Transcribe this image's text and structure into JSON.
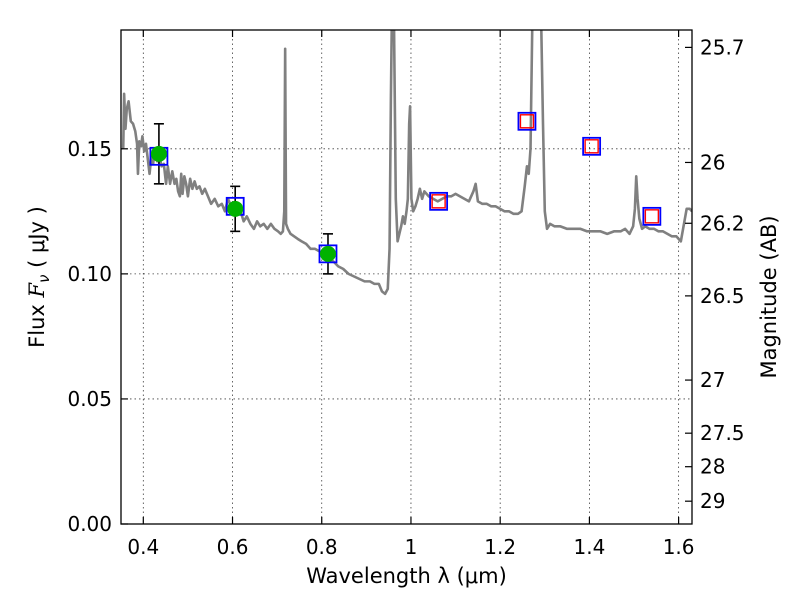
{
  "chart_data": {
    "type": "line",
    "xlabel": "Wavelength  λ (μm)",
    "ylabel": "Flux  F_ν  ( μJy )",
    "ylabel_right": "Magnitude (AB)",
    "xlim": [
      0.35,
      1.63
    ],
    "ylim": [
      0.0,
      0.1975
    ],
    "grid": true,
    "x_ticks": [
      {
        "value": 0.4,
        "label": "0.4"
      },
      {
        "value": 0.6,
        "label": "0.6"
      },
      {
        "value": 0.8,
        "label": "0.8"
      },
      {
        "value": 1.0,
        "label": "1"
      },
      {
        "value": 1.2,
        "label": "1.2"
      },
      {
        "value": 1.4,
        "label": "1.4"
      },
      {
        "value": 1.6,
        "label": "1.6"
      }
    ],
    "y_ticks": [
      {
        "value": 0.0,
        "label": "0.00"
      },
      {
        "value": 0.05,
        "label": "0.05"
      },
      {
        "value": 0.1,
        "label": "0.10"
      },
      {
        "value": 0.15,
        "label": "0.15"
      }
    ],
    "right_ticks": [
      {
        "mag": 25.7,
        "label": "25.7"
      },
      {
        "mag": 26,
        "label": "26"
      },
      {
        "mag": 26.2,
        "label": "26.2"
      },
      {
        "mag": 26.5,
        "label": "26.5"
      },
      {
        "mag": 27,
        "label": "27"
      },
      {
        "mag": 27.5,
        "label": "27.5"
      },
      {
        "mag": 28,
        "label": "28"
      },
      {
        "mag": 29,
        "label": "29"
      }
    ],
    "model_spectrum": {
      "color": "#808080",
      "points": [
        [
          0.355,
          0.15
        ],
        [
          0.357,
          0.172
        ],
        [
          0.36,
          0.158
        ],
        [
          0.363,
          0.166
        ],
        [
          0.367,
          0.169
        ],
        [
          0.372,
          0.161
        ],
        [
          0.377,
          0.16
        ],
        [
          0.382,
          0.157
        ],
        [
          0.386,
          0.152
        ],
        [
          0.388,
          0.14
        ],
        [
          0.391,
          0.153
        ],
        [
          0.395,
          0.151
        ],
        [
          0.398,
          0.155
        ],
        [
          0.402,
          0.149
        ],
        [
          0.406,
          0.152
        ],
        [
          0.41,
          0.146
        ],
        [
          0.414,
          0.14
        ],
        [
          0.418,
          0.147
        ],
        [
          0.422,
          0.144
        ],
        [
          0.426,
          0.15
        ],
        [
          0.431,
          0.145
        ],
        [
          0.436,
          0.147
        ],
        [
          0.441,
          0.143
        ],
        [
          0.446,
          0.144
        ],
        [
          0.451,
          0.136
        ],
        [
          0.455,
          0.143
        ],
        [
          0.46,
          0.136
        ],
        [
          0.465,
          0.141
        ],
        [
          0.47,
          0.136
        ],
        [
          0.474,
          0.138
        ],
        [
          0.478,
          0.133
        ],
        [
          0.482,
          0.131
        ],
        [
          0.485,
          0.14
        ],
        [
          0.488,
          0.132
        ],
        [
          0.492,
          0.139
        ],
        [
          0.496,
          0.136
        ],
        [
          0.5,
          0.131
        ],
        [
          0.505,
          0.138
        ],
        [
          0.51,
          0.134
        ],
        [
          0.515,
          0.137
        ],
        [
          0.52,
          0.134
        ],
        [
          0.526,
          0.135
        ],
        [
          0.532,
          0.132
        ],
        [
          0.538,
          0.134
        ],
        [
          0.545,
          0.131
        ],
        [
          0.552,
          0.128
        ],
        [
          0.56,
          0.13
        ],
        [
          0.568,
          0.127
        ],
        [
          0.576,
          0.128
        ],
        [
          0.583,
          0.125
        ],
        [
          0.59,
          0.13
        ],
        [
          0.597,
          0.127
        ],
        [
          0.604,
          0.126
        ],
        [
          0.611,
          0.127
        ],
        [
          0.618,
          0.125
        ],
        [
          0.625,
          0.121
        ],
        [
          0.632,
          0.123
        ],
        [
          0.64,
          0.12
        ],
        [
          0.648,
          0.118
        ],
        [
          0.655,
          0.121
        ],
        [
          0.662,
          0.119
        ],
        [
          0.67,
          0.12
        ],
        [
          0.678,
          0.118
        ],
        [
          0.686,
          0.12
        ],
        [
          0.694,
          0.118
        ],
        [
          0.702,
          0.117
        ],
        [
          0.708,
          0.116
        ],
        [
          0.713,
          0.117
        ],
        [
          0.716,
          0.125
        ],
        [
          0.718,
          0.19
        ],
        [
          0.72,
          0.12
        ],
        [
          0.724,
          0.118
        ],
        [
          0.73,
          0.116
        ],
        [
          0.738,
          0.115
        ],
        [
          0.746,
          0.114
        ],
        [
          0.755,
          0.113
        ],
        [
          0.765,
          0.112
        ],
        [
          0.775,
          0.11
        ],
        [
          0.785,
          0.11
        ],
        [
          0.795,
          0.109
        ],
        [
          0.805,
          0.107
        ],
        [
          0.815,
          0.106
        ],
        [
          0.826,
          0.105
        ],
        [
          0.837,
          0.103
        ],
        [
          0.848,
          0.102
        ],
        [
          0.86,
          0.1
        ],
        [
          0.872,
          0.099
        ],
        [
          0.884,
          0.098
        ],
        [
          0.896,
          0.097
        ],
        [
          0.908,
          0.097
        ],
        [
          0.918,
          0.096
        ],
        [
          0.928,
          0.096
        ],
        [
          0.935,
          0.093
        ],
        [
          0.942,
          0.092
        ],
        [
          0.948,
          0.094
        ],
        [
          0.952,
          0.11
        ],
        [
          0.955,
          0.17
        ],
        [
          0.957,
          0.2
        ],
        [
          0.962,
          0.2
        ],
        [
          0.966,
          0.13
        ],
        [
          0.97,
          0.113
        ],
        [
          0.974,
          0.116
        ],
        [
          0.978,
          0.119
        ],
        [
          0.982,
          0.123
        ],
        [
          0.986,
          0.12
        ],
        [
          0.99,
          0.125
        ],
        [
          0.993,
          0.13
        ],
        [
          0.996,
          0.16
        ],
        [
          0.998,
          0.167
        ],
        [
          1.001,
          0.13
        ],
        [
          1.005,
          0.125
        ],
        [
          1.01,
          0.127
        ],
        [
          1.015,
          0.13
        ],
        [
          1.02,
          0.134
        ],
        [
          1.025,
          0.13
        ],
        [
          1.03,
          0.133
        ],
        [
          1.04,
          0.131
        ],
        [
          1.05,
          0.13
        ],
        [
          1.06,
          0.129
        ],
        [
          1.07,
          0.13
        ],
        [
          1.08,
          0.131
        ],
        [
          1.09,
          0.131
        ],
        [
          1.1,
          0.132
        ],
        [
          1.11,
          0.131
        ],
        [
          1.12,
          0.13
        ],
        [
          1.13,
          0.129
        ],
        [
          1.14,
          0.133
        ],
        [
          1.145,
          0.136
        ],
        [
          1.15,
          0.129
        ],
        [
          1.16,
          0.128
        ],
        [
          1.17,
          0.128
        ],
        [
          1.18,
          0.127
        ],
        [
          1.19,
          0.127
        ],
        [
          1.2,
          0.126
        ],
        [
          1.21,
          0.125
        ],
        [
          1.22,
          0.125
        ],
        [
          1.23,
          0.124
        ],
        [
          1.24,
          0.124
        ],
        [
          1.248,
          0.125
        ],
        [
          1.255,
          0.135
        ],
        [
          1.26,
          0.143
        ],
        [
          1.264,
          0.14
        ],
        [
          1.268,
          0.15
        ],
        [
          1.272,
          0.2
        ],
        [
          1.292,
          0.2
        ],
        [
          1.296,
          0.16
        ],
        [
          1.3,
          0.125
        ],
        [
          1.305,
          0.118
        ],
        [
          1.312,
          0.12
        ],
        [
          1.322,
          0.119
        ],
        [
          1.335,
          0.119
        ],
        [
          1.35,
          0.118
        ],
        [
          1.365,
          0.118
        ],
        [
          1.38,
          0.118
        ],
        [
          1.395,
          0.117
        ],
        [
          1.41,
          0.117
        ],
        [
          1.425,
          0.117
        ],
        [
          1.44,
          0.116
        ],
        [
          1.455,
          0.117
        ],
        [
          1.47,
          0.117
        ],
        [
          1.48,
          0.118
        ],
        [
          1.49,
          0.116
        ],
        [
          1.498,
          0.119
        ],
        [
          1.502,
          0.126
        ],
        [
          1.505,
          0.139
        ],
        [
          1.508,
          0.13
        ],
        [
          1.512,
          0.122
        ],
        [
          1.518,
          0.118
        ],
        [
          1.525,
          0.119
        ],
        [
          1.535,
          0.118
        ],
        [
          1.545,
          0.118
        ],
        [
          1.555,
          0.117
        ],
        [
          1.565,
          0.117
        ],
        [
          1.575,
          0.116
        ],
        [
          1.585,
          0.115
        ],
        [
          1.595,
          0.115
        ],
        [
          1.605,
          0.113
        ],
        [
          1.612,
          0.12
        ],
        [
          1.618,
          0.126
        ],
        [
          1.625,
          0.126
        ],
        [
          1.63,
          0.125
        ]
      ]
    },
    "observed_points": {
      "color": "#00b200",
      "points": [
        {
          "x": 0.435,
          "y": 0.148,
          "yerr": 0.012
        },
        {
          "x": 0.606,
          "y": 0.126,
          "yerr": 0.009
        },
        {
          "x": 0.814,
          "y": 0.108,
          "yerr": 0.008
        }
      ]
    },
    "model_photometry": {
      "color": "#0000ff",
      "points": [
        {
          "x": 0.435,
          "y": 0.147
        },
        {
          "x": 0.606,
          "y": 0.127
        },
        {
          "x": 0.814,
          "y": 0.108
        },
        {
          "x": 1.062,
          "y": 0.129
        },
        {
          "x": 1.26,
          "y": 0.161
        },
        {
          "x": 1.405,
          "y": 0.151
        },
        {
          "x": 1.54,
          "y": 0.123
        }
      ]
    },
    "upper_points": {
      "color": "#ff0000",
      "points": [
        {
          "x": 1.062,
          "y": 0.129
        },
        {
          "x": 1.26,
          "y": 0.161
        },
        {
          "x": 1.405,
          "y": 0.151
        },
        {
          "x": 1.54,
          "y": 0.123
        }
      ]
    }
  }
}
